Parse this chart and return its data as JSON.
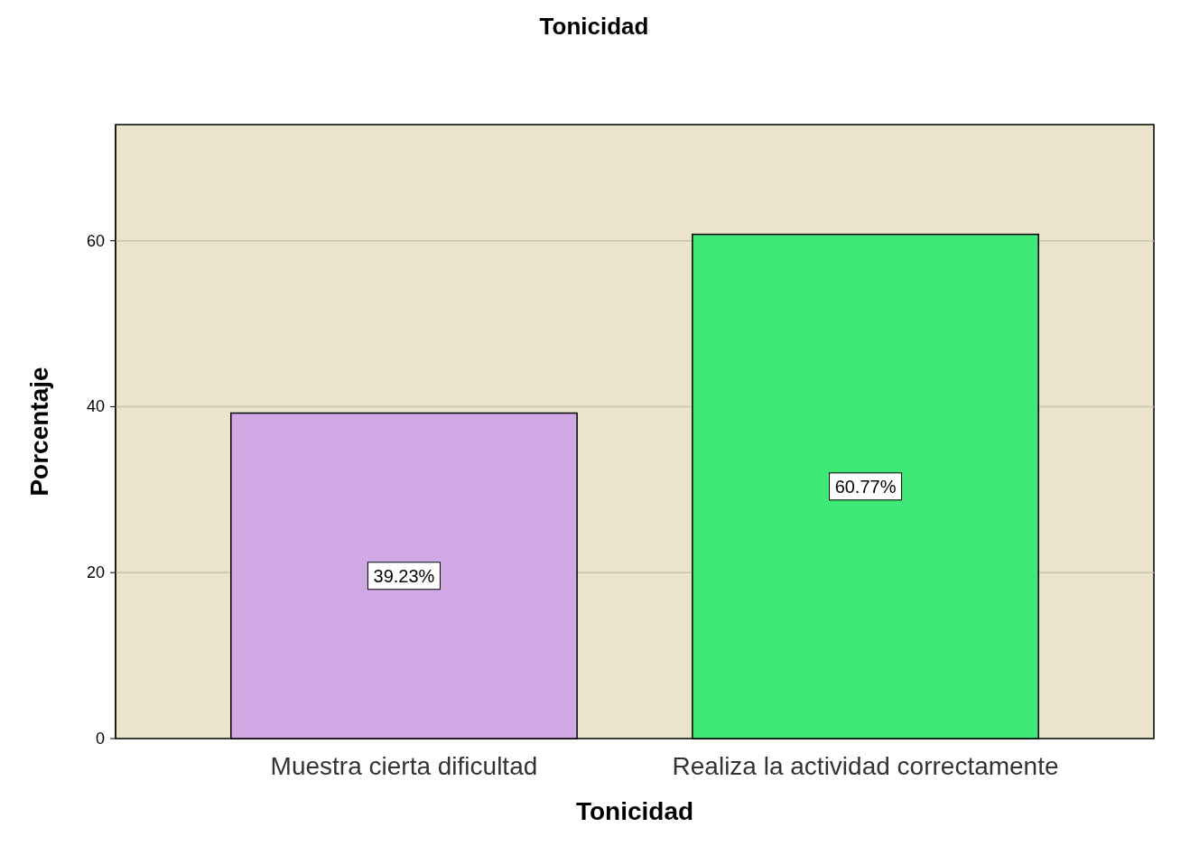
{
  "chart_data": {
    "type": "bar",
    "title": "Tonicidad",
    "xlabel": "Tonicidad",
    "ylabel": "Porcentaje",
    "categories": [
      "Muestra cierta dificultad",
      "Realiza la actividad correctamente"
    ],
    "values": [
      39.23,
      60.77
    ],
    "colors": [
      "#d0a8e4",
      "#40e878"
    ],
    "value_labels": [
      "39.23%",
      "60.77%"
    ],
    "ylim": [
      0,
      74
    ],
    "yticks": [
      0,
      20,
      40,
      60
    ],
    "grid": "y"
  }
}
